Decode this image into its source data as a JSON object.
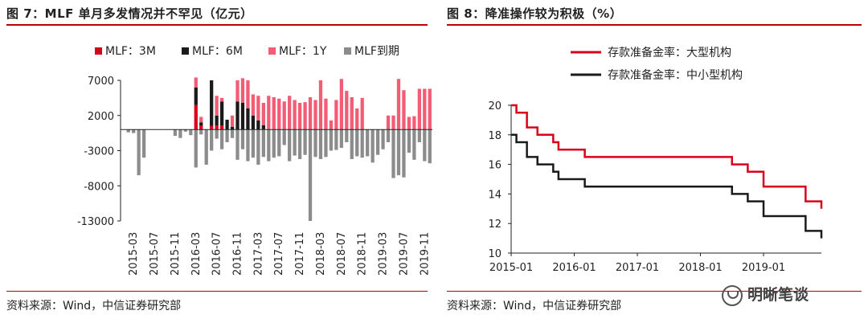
{
  "left": {
    "title": "图 7：MLF 单月多发情况并不罕见（亿元）",
    "source": "资料来源：Wind，中信证券研究部"
  },
  "right": {
    "title": "图 8：降准操作较为积极（%）",
    "source": "资料来源：Wind，中信证券研究部"
  },
  "watermark": "明晰笔谈",
  "colors": {
    "red": "#d9001b",
    "black": "#1a1a1a",
    "pink": "#f25c75",
    "gray": "#8c8c8c",
    "rule": "#c00000"
  },
  "chart_data": [
    {
      "type": "bar",
      "title": "图 7：MLF 单月多发情况并不罕见（亿元）",
      "ylim": [
        -13000,
        7000
      ],
      "yticks": [
        7000,
        2000,
        -3000,
        -8000,
        -13000
      ],
      "xticks": [
        "2015-03",
        "2015-07",
        "2015-11",
        "2016-03",
        "2016-07",
        "2016-11",
        "2017-03",
        "2017-07",
        "2017-11",
        "2018-03",
        "2018-07",
        "2018-11",
        "2019-03",
        "2019-07",
        "2019-11"
      ],
      "legend_position": "top",
      "categories": [
        "2015-01",
        "2015-02",
        "2015-03",
        "2015-04",
        "2015-05",
        "2015-06",
        "2015-07",
        "2015-08",
        "2015-09",
        "2015-10",
        "2015-11",
        "2015-12",
        "2016-01",
        "2016-02",
        "2016-03",
        "2016-04",
        "2016-05",
        "2016-06",
        "2016-07",
        "2016-08",
        "2016-09",
        "2016-10",
        "2016-11",
        "2016-12",
        "2017-01",
        "2017-02",
        "2017-03",
        "2017-04",
        "2017-05",
        "2017-06",
        "2017-07",
        "2017-08",
        "2017-09",
        "2017-10",
        "2017-11",
        "2017-12",
        "2018-01",
        "2018-02",
        "2018-03",
        "2018-04",
        "2018-05",
        "2018-06",
        "2018-07",
        "2018-08",
        "2018-09",
        "2018-10",
        "2018-11",
        "2018-12",
        "2019-01",
        "2019-02",
        "2019-03",
        "2019-04",
        "2019-05",
        "2019-06",
        "2019-07",
        "2019-08",
        "2019-09",
        "2019-10",
        "2019-11",
        "2019-12"
      ],
      "series": [
        {
          "name": "MLF：3M",
          "values": [
            0,
            0,
            0,
            0,
            0,
            0,
            0,
            0,
            0,
            0,
            0,
            0,
            0,
            0,
            3500,
            600,
            0,
            500,
            600,
            600,
            0,
            0,
            0,
            0,
            0,
            0,
            0,
            0,
            0,
            0,
            0,
            0,
            0,
            0,
            0,
            0,
            0,
            0,
            0,
            0,
            0,
            0,
            0,
            0,
            0,
            0,
            0,
            0,
            0,
            0,
            0,
            0,
            0,
            0,
            0,
            0,
            0,
            0,
            0,
            0
          ]
        },
        {
          "name": "MLF：6M",
          "values": [
            0,
            0,
            0,
            0,
            0,
            0,
            0,
            0,
            0,
            0,
            0,
            0,
            0,
            0,
            2500,
            400,
            0,
            6500,
            1400,
            3400,
            1400,
            400,
            4000,
            3800,
            3000,
            2000,
            1300,
            600,
            0,
            0,
            0,
            0,
            0,
            0,
            0,
            0,
            0,
            0,
            0,
            0,
            0,
            0,
            0,
            0,
            0,
            0,
            0,
            0,
            0,
            0,
            0,
            0,
            0,
            0,
            0,
            0,
            0,
            0,
            0,
            0
          ]
        },
        {
          "name": "MLF：1Y",
          "values": [
            0,
            0,
            0,
            0,
            0,
            0,
            0,
            0,
            0,
            0,
            0,
            0,
            0,
            0,
            1400,
            800,
            0,
            0,
            2800,
            500,
            0,
            1600,
            3000,
            3500,
            4000,
            3000,
            3500,
            3200,
            4800,
            4600,
            4400,
            4000,
            4800,
            4200,
            3800,
            3900,
            4600,
            4200,
            7000,
            4400,
            1300,
            4200,
            7200,
            5500,
            4600,
            3000,
            4500,
            0,
            0,
            0,
            0,
            2000,
            2000,
            7200,
            5600,
            1800,
            1900,
            5800,
            5800,
            5800
          ]
        },
        {
          "name": "MLF到期",
          "values": [
            0,
            -400,
            -500,
            -6500,
            -4000,
            0,
            0,
            0,
            0,
            0,
            -900,
            -1200,
            -300,
            -800,
            -5400,
            -700,
            -5000,
            -3000,
            -1300,
            -2800,
            -1800,
            -1200,
            -4300,
            -2800,
            -4500,
            -4000,
            -5000,
            -3900,
            -4500,
            -4000,
            -3800,
            -2200,
            -4500,
            -3700,
            -4200,
            -3600,
            -13000,
            -3900,
            -4200,
            -3900,
            -3000,
            -2900,
            -2600,
            -1800,
            -4200,
            -3800,
            -4000,
            -3800,
            -4700,
            -3600,
            -2800,
            -1800,
            -6900,
            -6500,
            -6800,
            -3300,
            -4300,
            -1800,
            -4500,
            -4800
          ]
        }
      ]
    },
    {
      "type": "line",
      "title": "图 8：降准操作较为积极（%）",
      "ylim": [
        10,
        20
      ],
      "yticks": [
        20,
        18,
        16,
        14,
        12,
        10
      ],
      "xlim": [
        "2015-01",
        "2019-12"
      ],
      "xticks": [
        "2015-01",
        "2016-01",
        "2017-01",
        "2018-01",
        "2019-01"
      ],
      "legend_position": "top",
      "series": [
        {
          "name": "存款准备金率：大型机构",
          "color": "#d9001b",
          "x": [
            "2015-01",
            "2015-02",
            "2015-04",
            "2015-06",
            "2015-09",
            "2015-10",
            "2016-03",
            "2018-04",
            "2018-07",
            "2018-10",
            "2019-01",
            "2019-09",
            "2019-12"
          ],
          "y": [
            20.0,
            19.5,
            18.5,
            18.0,
            17.5,
            17.0,
            16.5,
            16.5,
            16.0,
            15.5,
            14.5,
            13.5,
            13.0
          ]
        },
        {
          "name": "存款准备金率：中小型机构",
          "color": "#1a1a1a",
          "x": [
            "2015-01",
            "2015-02",
            "2015-04",
            "2015-06",
            "2015-09",
            "2015-10",
            "2016-03",
            "2018-04",
            "2018-07",
            "2018-10",
            "2019-01",
            "2019-09",
            "2019-12"
          ],
          "y": [
            18.0,
            17.5,
            16.5,
            16.0,
            15.5,
            15.0,
            14.5,
            14.5,
            14.0,
            13.5,
            12.5,
            11.5,
            11.0
          ]
        }
      ]
    }
  ]
}
